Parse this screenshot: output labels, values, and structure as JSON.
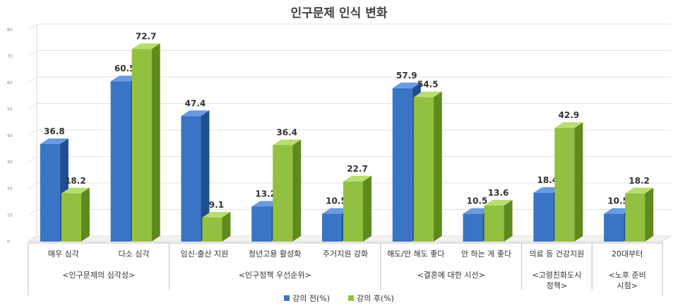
{
  "chart_data": {
    "type": "bar",
    "title": "인구문제 인식 변화",
    "categories": [
      "매우 심각",
      "다소 심각",
      "임신·출산 지원",
      "청년고용 활성화",
      "주거지원 강화",
      "해도/안 해도 좋다",
      "안 하는 게 좋다",
      "의료 등 건강지원",
      "20대부터"
    ],
    "groups": [
      {
        "label": "<인구문제의 심각성>",
        "start": 0,
        "end": 1
      },
      {
        "label": "<인구정책 우선순위>",
        "start": 2,
        "end": 4
      },
      {
        "label": "<결혼에 대한 시선>",
        "start": 5,
        "end": 6
      },
      {
        "label": "<고령친화도시 정책>",
        "start": 7,
        "end": 7
      },
      {
        "label": "<노후 준비 시점>",
        "start": 8,
        "end": 8
      }
    ],
    "series": [
      {
        "name": "강의 전(%)",
        "values": [
          36.8,
          60.5,
          47.4,
          13.2,
          10.5,
          57.9,
          10.5,
          18.4,
          10.5
        ]
      },
      {
        "name": "강의 후(%)",
        "values": [
          18.2,
          72.7,
          9.1,
          36.4,
          22.7,
          54.5,
          13.6,
          42.9,
          18.2
        ]
      }
    ],
    "ylim": [
      0,
      80
    ],
    "yticks": [
      "0",
      "10",
      "20",
      "30",
      "40",
      "50",
      "60",
      "70",
      "80"
    ],
    "grid": true,
    "legend_position": "bottom",
    "colors": {
      "series0_front": "#3a74c4",
      "series0_side": "#1f4e91",
      "series0_top": "#6a9be0",
      "series1_front": "#92c040",
      "series1_side": "#5e8a1e",
      "series1_top": "#b9dd72"
    }
  }
}
